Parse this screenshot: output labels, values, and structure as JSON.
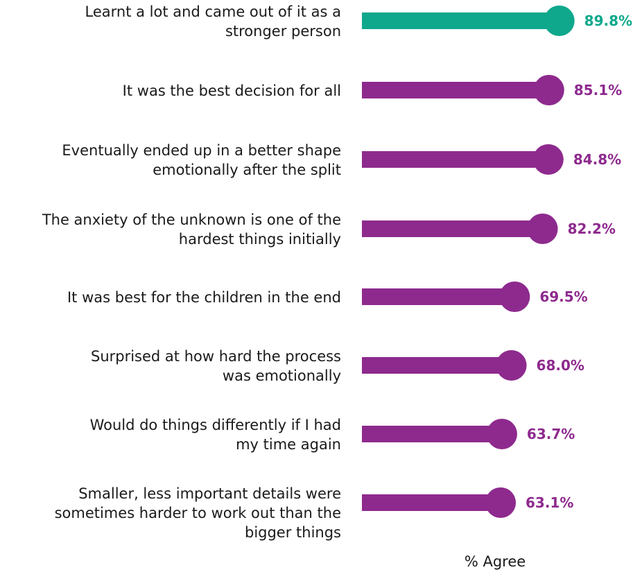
{
  "chart_data": {
    "type": "bar",
    "orientation": "horizontal",
    "categories": [
      [
        "Learnt a lot and came out of it as a",
        "stronger person"
      ],
      [
        "It was the best decision for all"
      ],
      [
        "Eventually ended up in a better shape",
        "emotionally after the split"
      ],
      [
        "The anxiety of the unknown is one of the",
        "hardest things initially"
      ],
      [
        "It was best for the children in the end"
      ],
      [
        "Surprised at how hard the process",
        "was emotionally"
      ],
      [
        "Would do things differently if I had",
        "my time again"
      ],
      [
        "Smaller, less important details were",
        "sometimes harder to work out than the",
        "bigger things"
      ]
    ],
    "values": [
      89.8,
      85.1,
      84.8,
      82.2,
      69.5,
      68.0,
      63.7,
      63.1
    ],
    "value_labels": [
      "89.8%",
      "85.1%",
      "84.8%",
      "82.2%",
      "69.5%",
      "68.0%",
      "63.7%",
      "63.1%"
    ],
    "highlight_index": 0,
    "xlabel": "% Agree",
    "title": "",
    "colors": {
      "highlight": "#0fa88c",
      "default": "#8e2a8e"
    }
  }
}
